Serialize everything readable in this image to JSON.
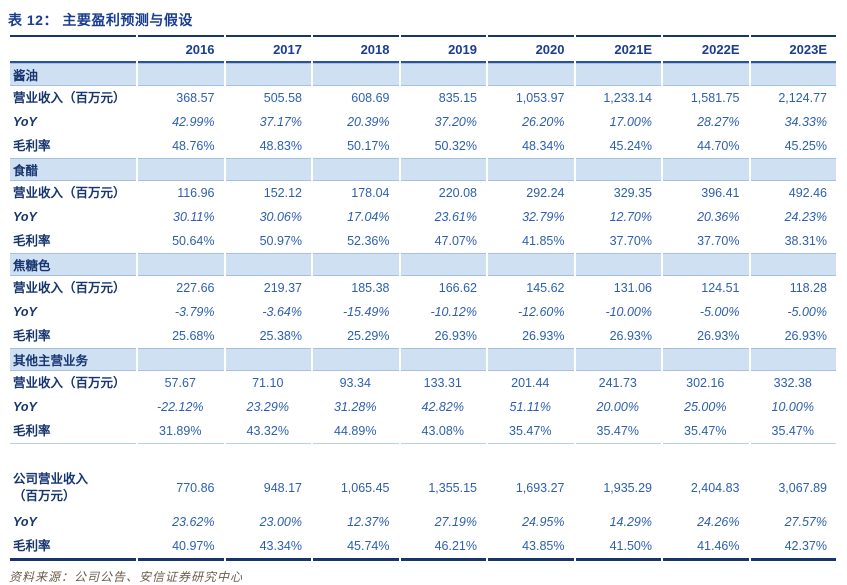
{
  "title": "表 12： 主要盈利预测与假设",
  "columns": [
    "2016",
    "2017",
    "2018",
    "2019",
    "2020",
    "2021E",
    "2022E",
    "2023E"
  ],
  "sections": [
    {
      "name": "酱油",
      "band": true,
      "rows": [
        {
          "label": "营业收入（百万元）",
          "values": [
            "368.57",
            "505.58",
            "608.69",
            "835.15",
            "1,053.97",
            "1,233.14",
            "1,581.75",
            "2,124.77"
          ]
        },
        {
          "label": "YoY",
          "italic": true,
          "values": [
            "42.99%",
            "37.17%",
            "20.39%",
            "37.20%",
            "26.20%",
            "17.00%",
            "28.27%",
            "34.33%"
          ]
        },
        {
          "label": "毛利率",
          "values": [
            "48.76%",
            "48.83%",
            "50.17%",
            "50.32%",
            "48.34%",
            "45.24%",
            "44.70%",
            "45.25%"
          ]
        }
      ]
    },
    {
      "name": "食醋",
      "band": true,
      "rows": [
        {
          "label": "营业收入（百万元）",
          "values": [
            "116.96",
            "152.12",
            "178.04",
            "220.08",
            "292.24",
            "329.35",
            "396.41",
            "492.46"
          ]
        },
        {
          "label": "YoY",
          "italic": true,
          "values": [
            "30.11%",
            "30.06%",
            "17.04%",
            "23.61%",
            "32.79%",
            "12.70%",
            "20.36%",
            "24.23%"
          ]
        },
        {
          "label": "毛利率",
          "values": [
            "50.64%",
            "50.97%",
            "52.36%",
            "47.07%",
            "41.85%",
            "37.70%",
            "37.70%",
            "38.31%"
          ]
        }
      ]
    },
    {
      "name": "焦糖色",
      "band": true,
      "rows": [
        {
          "label": "营业收入（百万元）",
          "values": [
            "227.66",
            "219.37",
            "185.38",
            "166.62",
            "145.62",
            "131.06",
            "124.51",
            "118.28"
          ]
        },
        {
          "label": "YoY",
          "italic": true,
          "values": [
            "-3.79%",
            "-3.64%",
            "-15.49%",
            "-10.12%",
            "-12.60%",
            "-10.00%",
            "-5.00%",
            "-5.00%"
          ]
        },
        {
          "label": "毛利率",
          "values": [
            "25.68%",
            "25.38%",
            "25.29%",
            "26.93%",
            "26.93%",
            "26.93%",
            "26.93%",
            "26.93%"
          ]
        }
      ]
    },
    {
      "name": "其他主营业务",
      "band": true,
      "align": "center",
      "rows": [
        {
          "label": "营业收入（百万元）",
          "values": [
            "57.67",
            "71.10",
            "93.34",
            "133.31",
            "201.44",
            "241.73",
            "302.16",
            "332.38"
          ]
        },
        {
          "label": "YoY",
          "italic": true,
          "values": [
            "-22.12%",
            "23.29%",
            "31.28%",
            "42.82%",
            "51.11%",
            "20.00%",
            "25.00%",
            "10.00%"
          ]
        },
        {
          "label": "毛利率",
          "values": [
            "31.89%",
            "43.32%",
            "44.89%",
            "43.08%",
            "35.47%",
            "35.47%",
            "35.47%",
            "35.47%"
          ]
        }
      ]
    },
    {
      "name": "",
      "band": false,
      "rows": [
        {
          "label": "公司营业收入",
          "label2": "（百万元）",
          "values": [
            "770.86",
            "948.17",
            "1,065.45",
            "1,355.15",
            "1,693.27",
            "1,935.29",
            "2,404.83",
            "3,067.89"
          ]
        },
        {
          "label": "YoY",
          "italic": true,
          "values": [
            "23.62%",
            "23.00%",
            "12.37%",
            "27.19%",
            "24.95%",
            "14.29%",
            "24.26%",
            "27.57%"
          ]
        },
        {
          "label": "毛利率",
          "values": [
            "40.97%",
            "43.34%",
            "45.74%",
            "46.21%",
            "43.85%",
            "41.50%",
            "41.46%",
            "42.37%"
          ]
        }
      ]
    }
  ],
  "source": "资料来源：公司公告、安信证券研究中心",
  "colors": {
    "accent_navy": "#17356f",
    "header_blue": "#1a3d8f",
    "value_blue": "#2d5fae",
    "band_bg": "#cfe0f2",
    "source_brown": "#6d5b49"
  }
}
